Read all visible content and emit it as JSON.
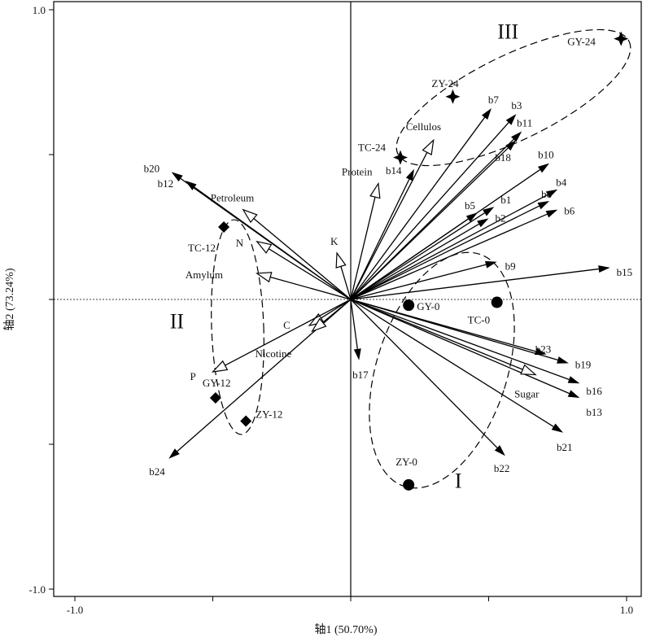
{
  "chart_data": {
    "type": "scatter",
    "subtype": "biplot",
    "xlabel": "轴1 (50.70%)",
    "ylabel": "轴2 (73.24%)",
    "xlim": [
      -1.05,
      1.05
    ],
    "ylim": [
      -1.05,
      1.05
    ],
    "x_ticks": [
      {
        "value": -1.0,
        "label": "-1.0"
      },
      {
        "value": 1.0,
        "label": "1.0"
      }
    ],
    "y_ticks": [
      {
        "value": 1.0,
        "label": "1.0"
      },
      {
        "value": -1.0,
        "label": "-1.0"
      }
    ],
    "grid": false,
    "bacteria_vectors": [
      {
        "name": "b1",
        "x": 0.52,
        "y": 0.32
      },
      {
        "name": "b2",
        "x": 0.5,
        "y": 0.28
      },
      {
        "name": "b3",
        "x": 0.6,
        "y": 0.64
      },
      {
        "name": "b4",
        "x": 0.75,
        "y": 0.38
      },
      {
        "name": "b5",
        "x": 0.46,
        "y": 0.3
      },
      {
        "name": "b6",
        "x": 0.75,
        "y": 0.31
      },
      {
        "name": "b7",
        "x": 0.51,
        "y": 0.66
      },
      {
        "name": "b8",
        "x": 0.72,
        "y": 0.34
      },
      {
        "name": "b9",
        "x": 0.53,
        "y": 0.13
      },
      {
        "name": "b10",
        "x": 0.72,
        "y": 0.47
      },
      {
        "name": "b11",
        "x": 0.62,
        "y": 0.58
      },
      {
        "name": "b12",
        "x": -0.6,
        "y": 0.41
      },
      {
        "name": "b13",
        "x": 0.83,
        "y": -0.34
      },
      {
        "name": "b14",
        "x": 0.23,
        "y": 0.45
      },
      {
        "name": "b15",
        "x": 0.94,
        "y": 0.11
      },
      {
        "name": "b16",
        "x": 0.83,
        "y": -0.29
      },
      {
        "name": "b17",
        "x": 0.03,
        "y": -0.21
      },
      {
        "name": "b18",
        "x": 0.6,
        "y": 0.55
      },
      {
        "name": "b19",
        "x": 0.79,
        "y": -0.22
      },
      {
        "name": "b20",
        "x": -0.65,
        "y": 0.44
      },
      {
        "name": "b21",
        "x": 0.77,
        "y": -0.46
      },
      {
        "name": "b22",
        "x": 0.56,
        "y": -0.54
      },
      {
        "name": "b23",
        "x": 0.71,
        "y": -0.19
      },
      {
        "name": "b24",
        "x": -0.66,
        "y": -0.55
      }
    ],
    "environment_vectors": [
      {
        "name": "Cellulos",
        "x": 0.3,
        "y": 0.55
      },
      {
        "name": "Protein",
        "x": 0.1,
        "y": 0.4
      },
      {
        "name": "Petroleum",
        "x": -0.39,
        "y": 0.31
      },
      {
        "name": "N",
        "x": -0.34,
        "y": 0.2
      },
      {
        "name": "K",
        "x": -0.05,
        "y": 0.16
      },
      {
        "name": "Amylum",
        "x": -0.34,
        "y": 0.09
      },
      {
        "name": "C",
        "x": -0.15,
        "y": -0.09
      },
      {
        "name": "Nicotine",
        "x": -0.14,
        "y": -0.11
      },
      {
        "name": "P",
        "x": -0.5,
        "y": -0.25
      },
      {
        "name": "Sugar",
        "x": 0.67,
        "y": -0.26
      }
    ],
    "sample_groups": [
      {
        "group": "I",
        "marker": "circle",
        "samples": [
          {
            "name": "GY-0",
            "x": 0.21,
            "y": -0.02
          },
          {
            "name": "TC-0",
            "x": 0.53,
            "y": -0.01
          },
          {
            "name": "ZY-0",
            "x": 0.21,
            "y": -0.64
          }
        ]
      },
      {
        "group": "II",
        "marker": "diamond",
        "samples": [
          {
            "name": "TC-12",
            "x": -0.46,
            "y": 0.25
          },
          {
            "name": "GY-12",
            "x": -0.49,
            "y": -0.34
          },
          {
            "name": "ZY-12",
            "x": -0.38,
            "y": -0.42
          }
        ]
      },
      {
        "group": "III",
        "marker": "star4",
        "samples": [
          {
            "name": "ZY-24",
            "x": 0.37,
            "y": 0.7
          },
          {
            "name": "TC-24",
            "x": 0.18,
            "y": 0.49
          },
          {
            "name": "GY-24",
            "x": 0.98,
            "y": 0.9
          }
        ]
      }
    ],
    "group_labels": [
      {
        "text": "I",
        "x": 0.39,
        "y": -0.65
      },
      {
        "text": "II",
        "x": -0.63,
        "y": -0.1
      },
      {
        "text": "III",
        "x": 0.57,
        "y": 0.9
      }
    ]
  }
}
